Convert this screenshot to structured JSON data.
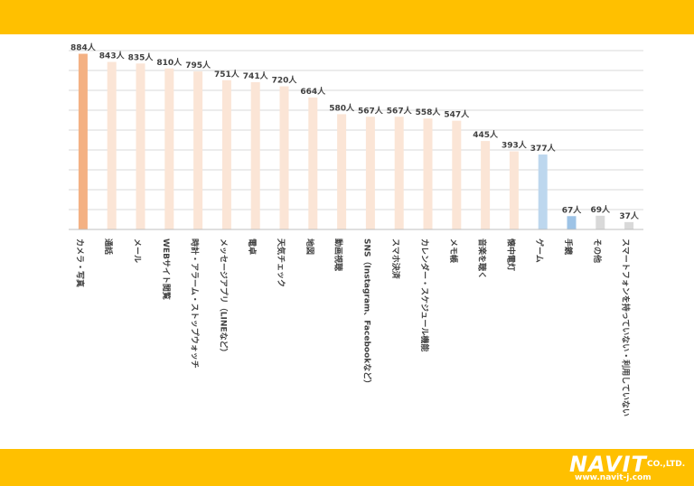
{
  "chart_data": {
    "type": "bar",
    "categories": [
      "カメラ・写真",
      "通話",
      "メール",
      "WEBサイト閲覧",
      "時計・アラーム・ストップウォッチ",
      "メッセージアプリ（LINEなど）",
      "電卓",
      "天気チェック",
      "地図",
      "動画視聴",
      "SNS（Instagram、Facebookなど）",
      "スマホ決済",
      "カレンダー・スケジュール機能",
      "メモ帳",
      "音楽を聴く",
      "懐中電灯",
      "ゲーム",
      "手鏡",
      "その他",
      "スマートフォンを持っていない・利用していない"
    ],
    "values": [
      884,
      843,
      835,
      810,
      795,
      751,
      741,
      720,
      664,
      580,
      567,
      567,
      558,
      547,
      445,
      393,
      377,
      67,
      69,
      37
    ],
    "value_labels": [
      "884人",
      "843人",
      "835人",
      "810人",
      "795人",
      "751人",
      "741人",
      "720人",
      "664人",
      "580人",
      "567人",
      "567人",
      "558人",
      "547人",
      "445人",
      "393人",
      "377人",
      "67人",
      "69人",
      "37人"
    ],
    "bar_colors": [
      "#F4B183",
      "#FBE5D6",
      "#FBE5D6",
      "#FBE5D6",
      "#FBE5D6",
      "#FBE5D6",
      "#FBE5D6",
      "#FBE5D6",
      "#FBE5D6",
      "#FBE5D6",
      "#FBE5D6",
      "#FBE5D6",
      "#FBE5D6",
      "#FBE5D6",
      "#FBE5D6",
      "#FBE5D6",
      "#BDD7EE",
      "#9DC3E6",
      "#D9D9D9",
      "#D9D9D9"
    ],
    "ylim": [
      0,
      900
    ],
    "grid": true
  },
  "logo": {
    "name": "NAVIT",
    "suffix": "CO.,LTD.",
    "url": "www.navit-j.com"
  },
  "colors": {
    "banner": "#FFC000"
  }
}
